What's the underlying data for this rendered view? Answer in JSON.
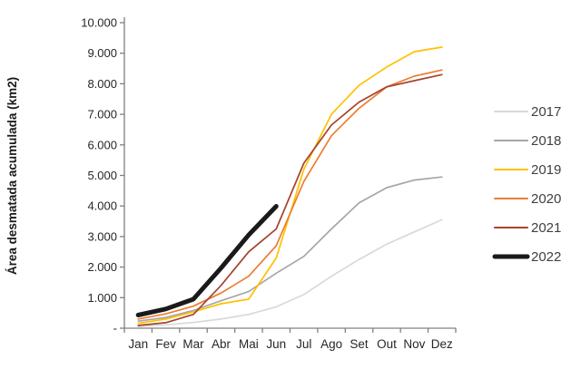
{
  "chart_data": {
    "type": "line",
    "title": "",
    "xlabel": "",
    "ylabel": "Área desmatada acumulada (km2)",
    "categories": [
      "Jan",
      "Fev",
      "Mar",
      "Abr",
      "Mai",
      "Jun",
      "Jul",
      "Ago",
      "Set",
      "Out",
      "Nov",
      "Dez"
    ],
    "y_axis": {
      "min": 0,
      "max": 10000,
      "step": 1000,
      "tick_labels": [
        "-",
        "1.000",
        "2.000",
        "3.000",
        "4.000",
        "5.000",
        "6.000",
        "7.000",
        "8.000",
        "9.000",
        "10.000"
      ]
    },
    "grid": false,
    "legend_position": "right",
    "series": [
      {
        "name": "2017",
        "color": "#d9d9d9",
        "thick": false,
        "values": [
          60,
          110,
          190,
          300,
          450,
          700,
          1100,
          1700,
          2250,
          2750,
          3150,
          3550
        ]
      },
      {
        "name": "2018",
        "color": "#a6a6a6",
        "thick": false,
        "values": [
          230,
          350,
          580,
          900,
          1200,
          1800,
          2350,
          3250,
          4100,
          4600,
          4850,
          4950
        ]
      },
      {
        "name": "2019",
        "color": "#ffc000",
        "thick": false,
        "values": [
          160,
          300,
          530,
          800,
          950,
          2300,
          5200,
          7000,
          7950,
          8550,
          9050,
          9200
        ]
      },
      {
        "name": "2020",
        "color": "#ed7d31",
        "thick": false,
        "values": [
          300,
          470,
          720,
          1150,
          1700,
          2700,
          4800,
          6300,
          7200,
          7900,
          8250,
          8450
        ]
      },
      {
        "name": "2021",
        "color": "#a5442d",
        "thick": false,
        "values": [
          90,
          180,
          450,
          1400,
          2500,
          3250,
          5400,
          6650,
          7400,
          7900,
          8100,
          8300
        ]
      },
      {
        "name": "2022",
        "color": "#1a1a1a",
        "thick": true,
        "values": [
          430,
          630,
          950,
          1970,
          3050,
          3990,
          null,
          null,
          null,
          null,
          null,
          null
        ]
      }
    ]
  }
}
